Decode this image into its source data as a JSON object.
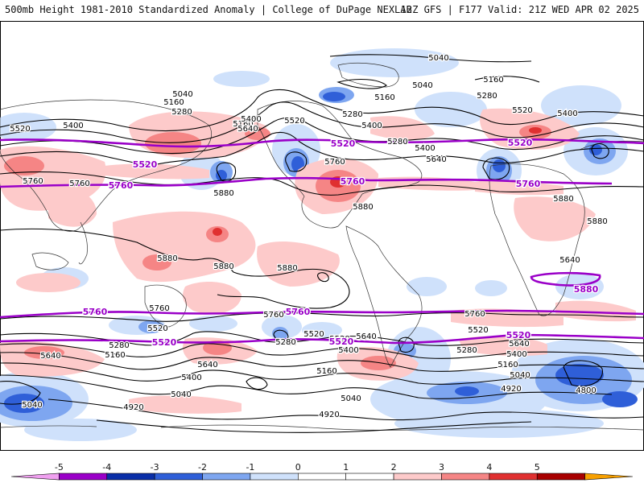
{
  "header": {
    "left": "500mb Height 1981-2010 Standardized Anomaly | College of DuPage NEXLAB",
    "right": "12Z GFS | F177 Valid: 21Z WED APR 02 2025"
  },
  "colorbar": {
    "labels": [
      "-5",
      "-4",
      "-3",
      "-2",
      "-1",
      "0",
      "1",
      "2",
      "3",
      "4",
      "5"
    ],
    "colors": [
      "#f0a0f0",
      "#9a00c8",
      "#0a2fa8",
      "#2f5fd8",
      "#7ea6f0",
      "#cfe1fb",
      "#ffffff",
      "#ffffff",
      "#fdcaca",
      "#f58585",
      "#e03030",
      "#a80000",
      "#f7a000"
    ]
  },
  "map": {
    "height_labels": [
      "5040",
      "5040",
      "5160",
      "5160",
      "5280",
      "5520",
      "5400",
      "5040",
      "5160",
      "5280",
      "5400",
      "5160",
      "5280",
      "5520",
      "5400",
      "5520",
      "5400",
      "5640",
      "5280",
      "5400",
      "5760",
      "5640",
      "5760",
      "5880",
      "5880",
      "5880",
      "5880",
      "5880",
      "5880",
      "5880",
      "5640",
      "5760",
      "5760",
      "5760",
      "5760",
      "5520",
      "5280",
      "5160",
      "5640",
      "5400",
      "5640",
      "5520",
      "5280",
      "5520",
      "5400",
      "5640",
      "5400",
      "5160",
      "5040",
      "4920",
      "5040",
      "4920",
      "5640",
      "5280",
      "5160",
      "5040",
      "4920",
      "4800",
      "5040",
      "5520",
      "5400",
      "5640",
      "5280",
      "5160"
    ],
    "purple_labels": [
      "5520",
      "5520",
      "5520",
      "5760",
      "5760",
      "5760",
      "5760",
      "5520",
      "5520",
      "5520",
      "5880",
      "5760"
    ]
  }
}
